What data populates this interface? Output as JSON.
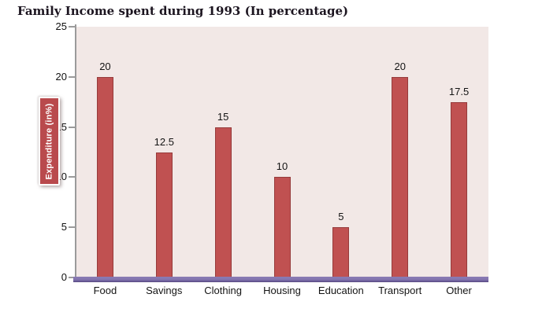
{
  "title": "Family Income spent during 1993 (In percentage)",
  "y_axis_label": "Expenditure (in%)",
  "chart_data": {
    "type": "bar",
    "title": "Family Income spent during 1993 (In percentage)",
    "categories": [
      "Food",
      "Savings",
      "Clothing",
      "Housing",
      "Education",
      "Transport",
      "Other"
    ],
    "values": [
      20,
      12.5,
      15,
      10,
      5,
      20,
      17.5
    ],
    "value_labels": [
      "20",
      "12.5",
      "15",
      "10",
      "5",
      "20",
      "17.5"
    ],
    "xlabel": "",
    "ylabel": "Expenditure (in%)",
    "ylim": [
      0,
      25
    ],
    "yticks": [
      0,
      5,
      10,
      15,
      20,
      25
    ],
    "grid": false,
    "legend": false,
    "bar_data_labels_position": "above-bar"
  },
  "colors": {
    "bar_fill": "#c05151",
    "bar_border": "#963b3b",
    "plot_background": "#f2e8e6",
    "baseline_band": "#8273ae",
    "baseline_band_dark": "#57497f",
    "axis_line": "#9b9b9b",
    "ylabel_box_fill": "#b94a4d",
    "ylabel_box_border": "#ffffff",
    "ylabel_text": "#ffffff",
    "text": "#141414",
    "page_background": "#ffffff"
  }
}
